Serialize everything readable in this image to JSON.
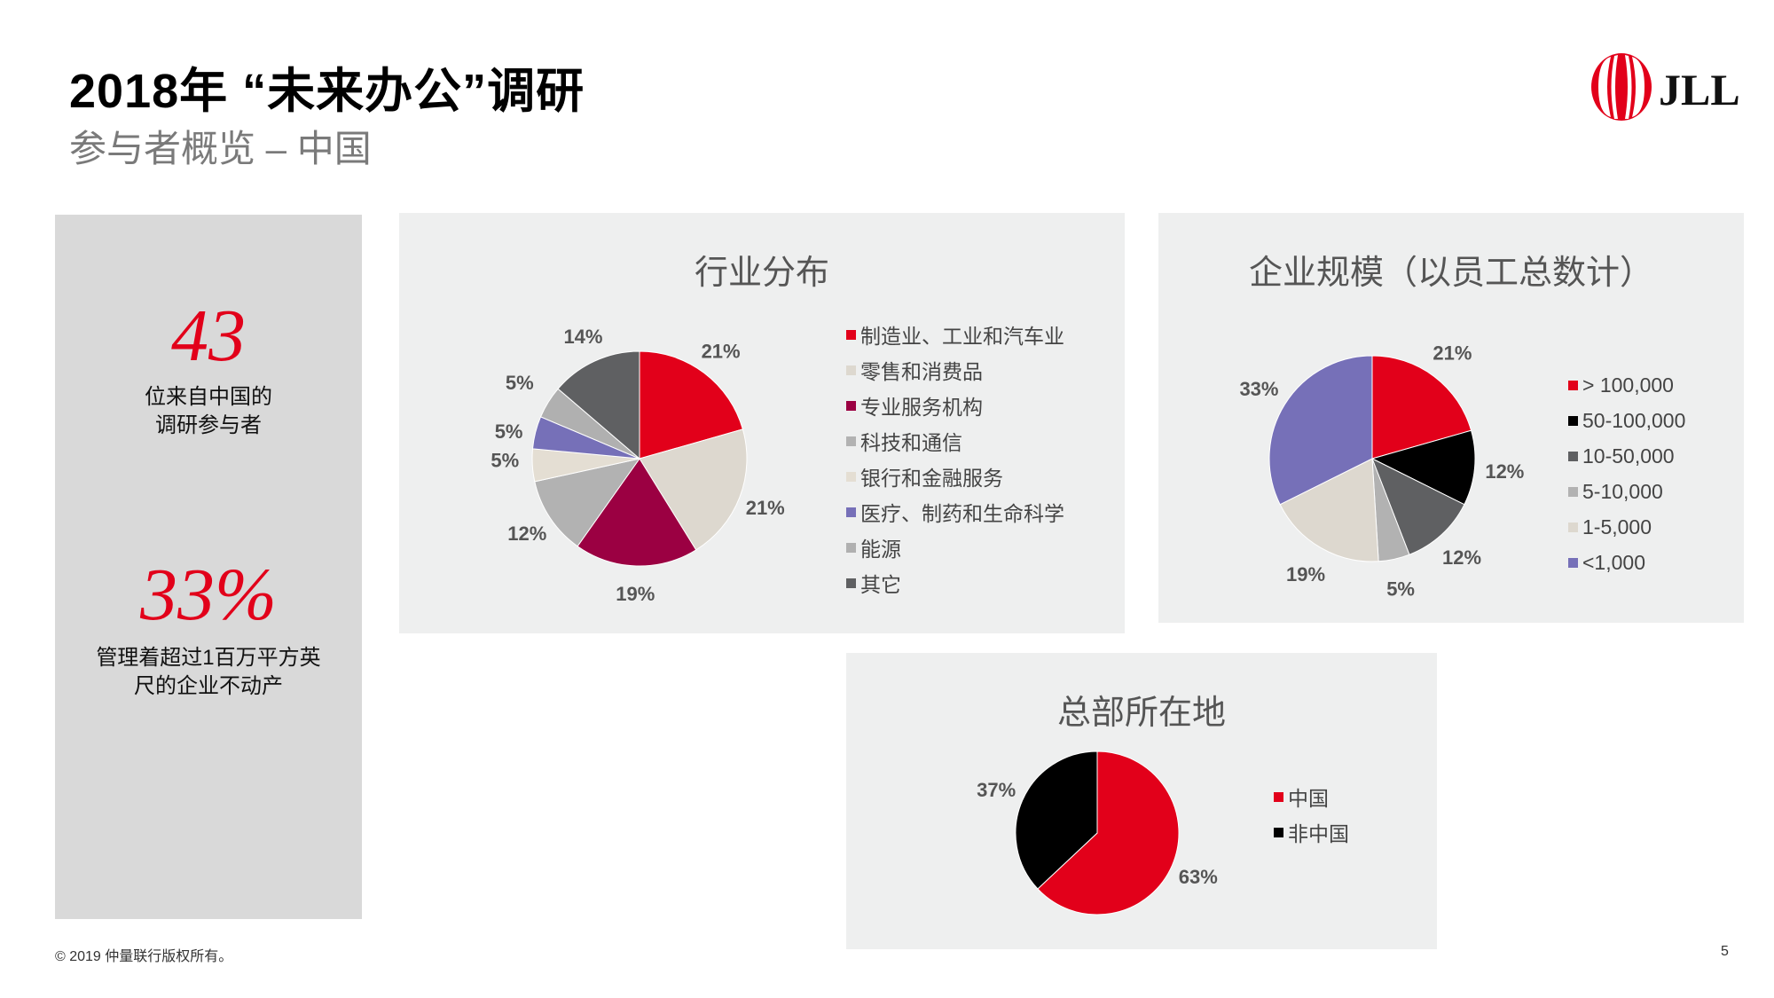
{
  "header": {
    "title": "2018年 “未来办公”调研",
    "subtitle": "参与者概览 – 中国",
    "logo_text": "JLL"
  },
  "stats": [
    {
      "value": "43",
      "desc_line1": "位来自中国的",
      "desc_line2": "调研参与者"
    },
    {
      "value": "33%",
      "desc_line1": "管理着超过1百万平方英",
      "desc_line2": "尺的企业不动产"
    }
  ],
  "chart_data": [
    {
      "type": "pie",
      "title": "行业分布",
      "categories": [
        "制造业、工业和汽车业",
        "零售和消费品",
        "专业服务机构",
        "科技和通信",
        "银行和金融服务",
        "医疗、制药和生命科学",
        "能源",
        "其它"
      ],
      "values": [
        21,
        21,
        19,
        12,
        5,
        5,
        5,
        14
      ],
      "labels": [
        "21%",
        "21%",
        "19%",
        "12%",
        "5%",
        "5%",
        "5%",
        "14%"
      ],
      "colors": [
        "#e2001a",
        "#ddd8cf",
        "#9b0042",
        "#b2b2b2",
        "#e4ded3",
        "#7670b8",
        "#b0b0b0",
        "#5f6062"
      ],
      "legend_position": "right"
    },
    {
      "type": "pie",
      "title": "企业规模（以员工总数计）",
      "categories": [
        "> 100,000",
        "50-100,000",
        "10-50,000",
        "5-10,000",
        "1-5,000",
        "<1,000"
      ],
      "values": [
        21,
        12,
        12,
        5,
        19,
        33
      ],
      "labels": [
        "21%",
        "12%",
        "12%",
        "5%",
        "19%",
        "33%"
      ],
      "colors": [
        "#e2001a",
        "#000000",
        "#5f6062",
        "#b2b2b2",
        "#ddd8cf",
        "#7670b8"
      ],
      "legend_position": "right"
    },
    {
      "type": "pie",
      "title": "总部所在地",
      "categories": [
        "中国",
        "非中国"
      ],
      "values": [
        63,
        37
      ],
      "labels": [
        "63%",
        "37%"
      ],
      "colors": [
        "#e2001a",
        "#000000"
      ],
      "legend_position": "right"
    }
  ],
  "footer": {
    "copyright": "© 2019 仲量联行版权所有。",
    "page": "5"
  }
}
